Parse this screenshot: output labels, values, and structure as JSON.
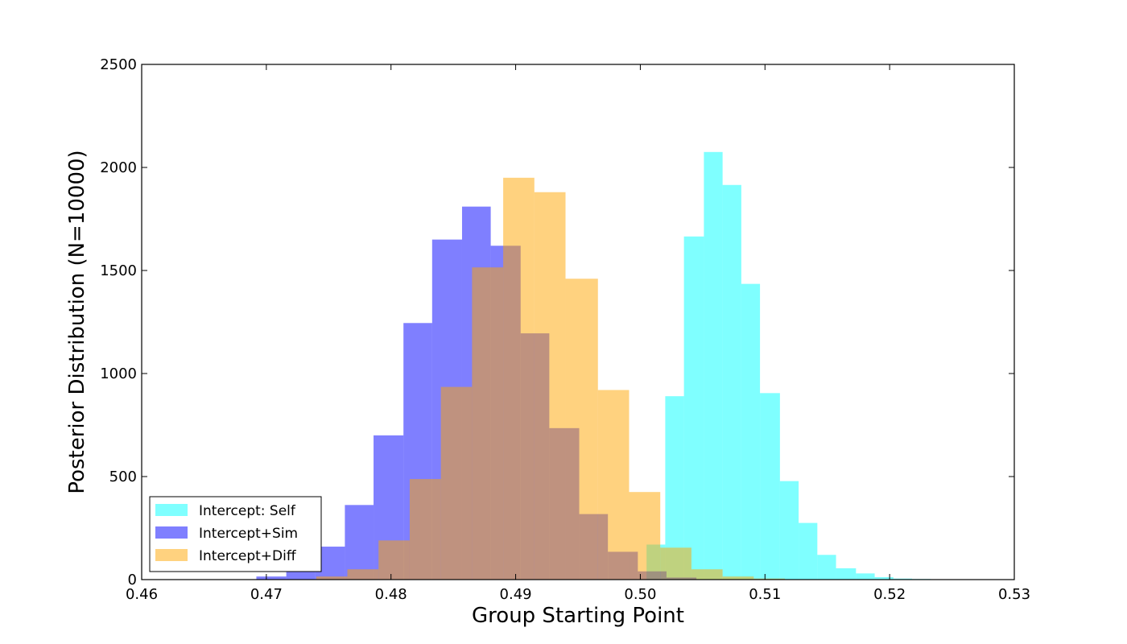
{
  "chart_data": {
    "type": "histogram",
    "title": "",
    "xlabel": "Group Starting Point",
    "ylabel": "Posterior Distribution (N=10000)",
    "xlim": [
      0.46,
      0.53
    ],
    "ylim": [
      0,
      2500
    ],
    "xticks": [
      "0.46",
      "0.47",
      "0.48",
      "0.49",
      "0.50",
      "0.51",
      "0.52",
      "0.53"
    ],
    "yticks": [
      "0",
      "500",
      "1000",
      "1500",
      "2000",
      "2500"
    ],
    "grid": false,
    "legend_position": "lower-left",
    "series": [
      {
        "name": "Intercept: Self",
        "color": "#00ffff",
        "alpha": 0.5,
        "bin_edges": [
          0.5005,
          0.502,
          0.5035,
          0.5051,
          0.5066,
          0.5081,
          0.5096,
          0.5112,
          0.5127,
          0.5142,
          0.5157,
          0.5173,
          0.5188,
          0.5203,
          0.5218,
          0.5233
        ],
        "counts": [
          170,
          890,
          1665,
          2075,
          1915,
          1435,
          905,
          478,
          275,
          120,
          55,
          30,
          12,
          5,
          3
        ]
      },
      {
        "name": "Intercept+Sim",
        "color": "#0000ff",
        "alpha": 0.5,
        "bin_edges": [
          0.4692,
          0.4716,
          0.4739,
          0.4763,
          0.4786,
          0.481,
          0.4833,
          0.4857,
          0.488,
          0.4904,
          0.4927,
          0.4951,
          0.4974,
          0.4998,
          0.5021,
          0.5045
        ],
        "counts": [
          15,
          40,
          160,
          362,
          700,
          1245,
          1650,
          1810,
          1620,
          1195,
          735,
          318,
          135,
          40,
          10
        ]
      },
      {
        "name": "Intercept+Diff",
        "color": "#ffa500",
        "alpha": 0.5,
        "bin_edges": [
          0.474,
          0.4765,
          0.479,
          0.4815,
          0.484,
          0.4865,
          0.489,
          0.4915,
          0.494,
          0.4966,
          0.4991,
          0.5016,
          0.5041,
          0.5066,
          0.5091,
          0.5116
        ],
        "counts": [
          15,
          50,
          190,
          488,
          935,
          1515,
          1950,
          1880,
          1460,
          920,
          425,
          155,
          50,
          15,
          5
        ]
      }
    ]
  }
}
